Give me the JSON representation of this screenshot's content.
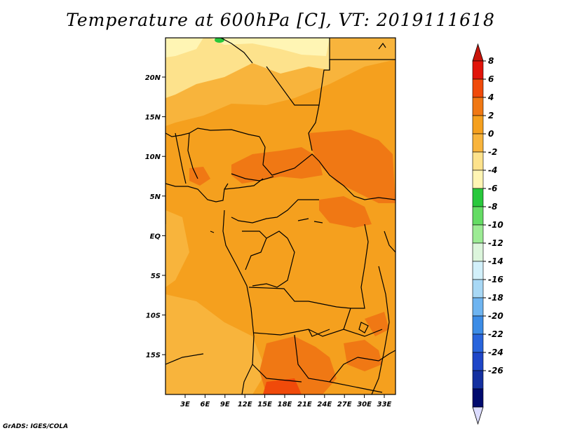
{
  "title": "Temperature at 600hPa [C], VT: 2019111618",
  "footer": "GrADS: IGES/COLA",
  "map": {
    "lon_labels": [
      "3E",
      "6E",
      "9E",
      "12E",
      "15E",
      "18E",
      "21E",
      "24E",
      "27E",
      "30E",
      "33E"
    ],
    "lat_labels": [
      "20N",
      "15N",
      "10N",
      "5N",
      "EQ",
      "5S",
      "10S",
      "15S"
    ]
  },
  "colorbar": {
    "labels": [
      "8",
      "6",
      "4",
      "2",
      "0",
      "-2",
      "-4",
      "-6",
      "-8",
      "-10",
      "-12",
      "-14",
      "-16",
      "-18",
      "-20",
      "-22",
      "-24",
      "-26"
    ],
    "colors": [
      "#e1140a",
      "#f04a0a",
      "#f07814",
      "#f5a01e",
      "#f8b43c",
      "#fde28c",
      "#fff5b4",
      "#28c83c",
      "#64dc64",
      "#9ceb94",
      "#dcf5dc",
      "#d2f0fa",
      "#a8d8f5",
      "#6eb4f0",
      "#3c8ce6",
      "#2864dc",
      "#1e46c8",
      "#1430a0",
      "#000a6e"
    ],
    "top_arrow_color": "#c8140a",
    "bottom_arrow_color": "#dcdcff"
  }
}
